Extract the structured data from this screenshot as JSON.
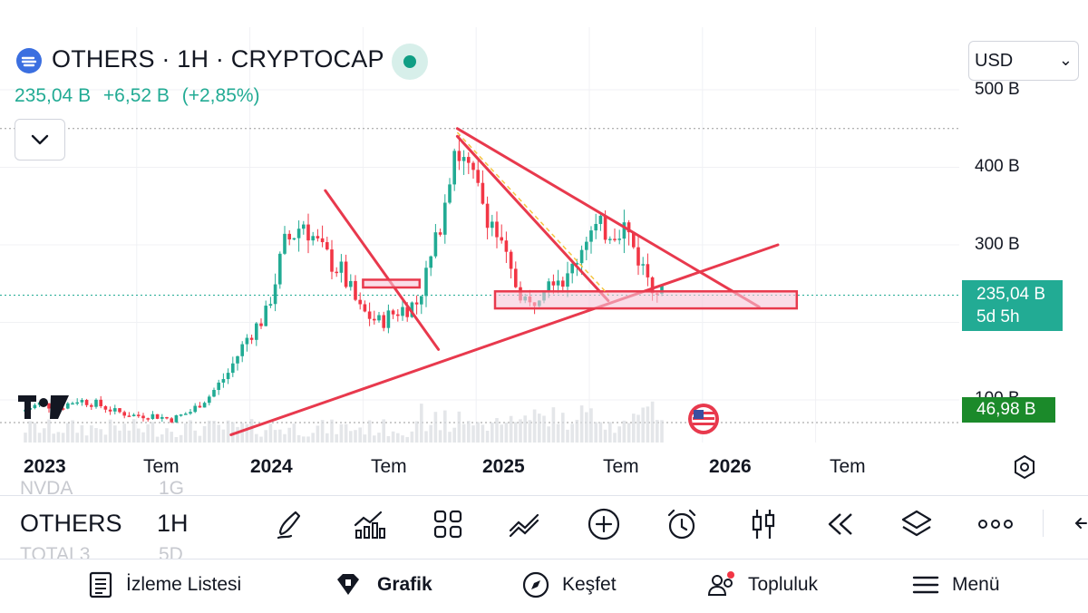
{
  "header": {
    "title": "OTHERS · 1H · CRYPTOCAP",
    "price": "235,04 B",
    "change": "+6,52 B",
    "change_pct": "(+2,85%)",
    "currency": "USD"
  },
  "y_axis": {
    "ticks": [
      "500 B",
      "400 B",
      "300 B",
      "100 B"
    ]
  },
  "price_tag": {
    "price": "235,04 B",
    "countdown": "5d 5h"
  },
  "low_tag": "46,98 B",
  "x_axis": {
    "labels": [
      "2023",
      "Tem",
      "2024",
      "Tem",
      "2025",
      "Tem",
      "2026",
      "Tem"
    ]
  },
  "toolbar": {
    "ghost_above": {
      "symbol": "NVDA",
      "tf": "1G"
    },
    "symbol": "OTHERS",
    "timeframe": "1H",
    "ghost_below": {
      "symbol": "TOTAL3",
      "tf": "5D"
    }
  },
  "nav": {
    "watchlist": "İzleme Listesi",
    "chart": "Grafik",
    "explore": "Keşfet",
    "community": "Topluluk",
    "menu": "Menü"
  },
  "colors": {
    "up": "#22ab94",
    "down": "#f23645",
    "drawing": "#e8394d",
    "zone_fill": "#f7c6d9",
    "volume": "#d9dbe0",
    "brand_logo": "#3b6fe0"
  },
  "chart_data": {
    "type": "candlestick",
    "title": "OTHERS · 1H · CRYPTOCAP",
    "ylim": [
      40,
      510
    ],
    "y_ticks": [
      100,
      300,
      400,
      500
    ],
    "x": [
      "2023-01",
      "2023-02",
      "2023-03",
      "2023-04",
      "2023-05",
      "2023-06",
      "2023-07",
      "2023-08",
      "2023-09",
      "2023-10",
      "2023-11",
      "2023-12",
      "2024-01",
      "2024-02",
      "2024-03",
      "2024-04",
      "2024-05",
      "2024-06",
      "2024-07",
      "2024-08",
      "2024-09",
      "2024-10",
      "2024-11",
      "2024-12",
      "2025-01",
      "2025-02",
      "2025-03",
      "2025-04",
      "2025-05",
      "2025-06",
      "2025-07",
      "2025-08",
      "2025-09",
      "2025-10",
      "2025-11"
    ],
    "close": [
      85,
      95,
      90,
      100,
      95,
      85,
      80,
      80,
      75,
      85,
      105,
      135,
      180,
      210,
      300,
      330,
      290,
      265,
      215,
      200,
      215,
      225,
      300,
      430,
      380,
      330,
      260,
      220,
      265,
      255,
      315,
      320,
      325,
      270,
      235
    ],
    "last_price": 235.04,
    "last_low_label": 46.98,
    "drawings": [
      {
        "type": "trendline",
        "from": [
          "2023-12",
          55
        ],
        "to": [
          "2026-05",
          300
        ]
      },
      {
        "type": "trendline",
        "from": [
          "2024-12",
          450
        ],
        "to": [
          "2026-04",
          220
        ]
      },
      {
        "type": "trendline",
        "from": [
          "2024-05",
          370
        ],
        "to": [
          "2024-11",
          165
        ]
      },
      {
        "type": "trendline",
        "from": [
          "2024-12",
          440
        ],
        "to": [
          "2025-08",
          228
        ]
      },
      {
        "type": "zone",
        "from": [
          "2025-02",
          240
        ],
        "to": [
          "2026-06",
          218
        ]
      },
      {
        "type": "zone",
        "from": [
          "2024-07",
          255
        ],
        "to": [
          "2024-10",
          245
        ]
      }
    ]
  }
}
